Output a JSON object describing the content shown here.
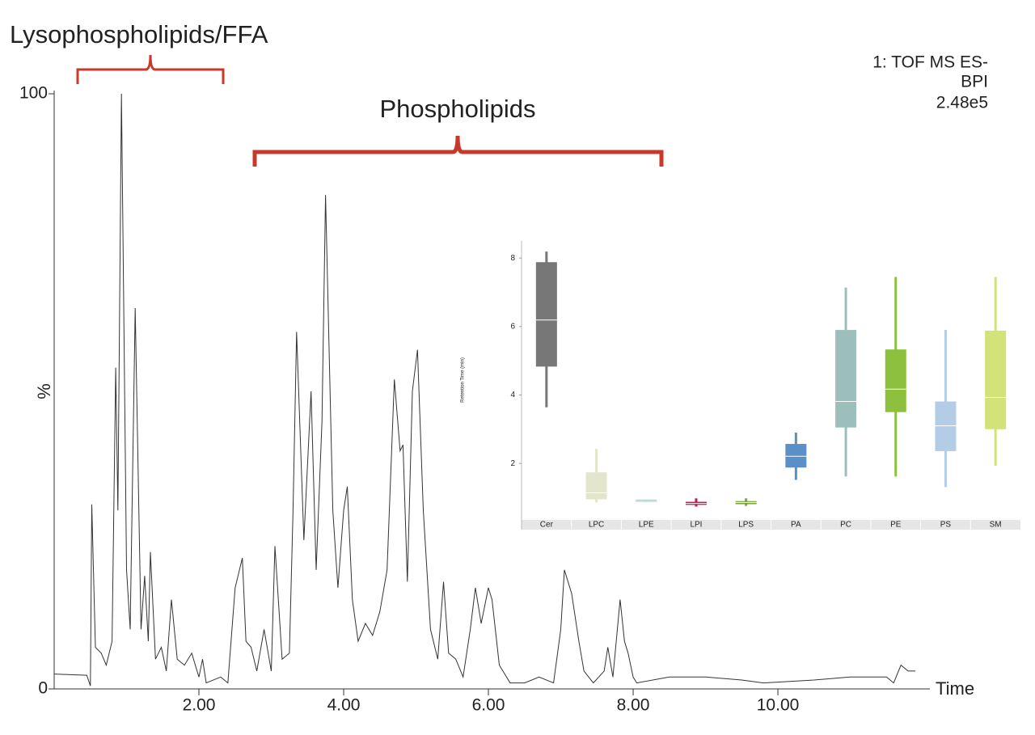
{
  "chart_data": [
    {
      "type": "line",
      "annotations": [
        "Lysophospholipids/FFA",
        "Phospholipids"
      ],
      "info": [
        "1: TOF MS ES-",
        "BPI",
        "2.48e5"
      ],
      "xlabel": "Time",
      "ylabel": "%",
      "color": "#333333",
      "x": [
        0.0,
        0.45,
        0.5,
        0.52,
        0.57,
        0.65,
        0.72,
        0.8,
        0.85,
        0.88,
        0.93,
        1.0,
        1.05,
        1.12,
        1.2,
        1.25,
        1.3,
        1.33,
        1.4,
        1.48,
        1.55,
        1.62,
        1.7,
        1.8,
        1.9,
        2.0,
        2.05,
        2.1,
        2.3,
        2.4,
        2.5,
        2.6,
        2.65,
        2.72,
        2.8,
        2.9,
        3.0,
        3.05,
        3.15,
        3.25,
        3.3,
        3.35,
        3.45,
        3.55,
        3.62,
        3.7,
        3.75,
        3.85,
        3.92,
        4.0,
        4.05,
        4.12,
        4.2,
        4.3,
        4.4,
        4.5,
        4.6,
        4.7,
        4.78,
        4.82,
        4.88,
        4.95,
        5.02,
        5.1,
        5.2,
        5.3,
        5.38,
        5.45,
        5.55,
        5.65,
        5.75,
        5.82,
        5.9,
        6.0,
        6.05,
        6.15,
        6.3,
        6.5,
        6.7,
        6.9,
        7.0,
        7.05,
        7.15,
        7.25,
        7.32,
        7.45,
        7.6,
        7.65,
        7.72,
        7.82,
        7.88,
        7.93,
        8.0,
        8.05,
        8.5,
        9.0,
        9.5,
        9.8,
        10.5,
        11.0,
        11.5,
        11.6,
        11.7,
        11.8,
        11.9
      ],
      "values": [
        2.5,
        2.3,
        0.5,
        31,
        7,
        6,
        4,
        8,
        54,
        30,
        100,
        20,
        10,
        64,
        10,
        19,
        8,
        23,
        5,
        7,
        3,
        15,
        5,
        4,
        6,
        2,
        5,
        1,
        2,
        1,
        17,
        22,
        8,
        7,
        3,
        10,
        3,
        24,
        5,
        6,
        30,
        60,
        25,
        50,
        20,
        45,
        83,
        30,
        17,
        30,
        34,
        15,
        8,
        11,
        9,
        13,
        20,
        52,
        40,
        41,
        18,
        50,
        57,
        30,
        10,
        5,
        18,
        6,
        5,
        2,
        10,
        17,
        11,
        17,
        15,
        4,
        1,
        1,
        2,
        1,
        10,
        20,
        16,
        8,
        3,
        1,
        3,
        7,
        2,
        15,
        8,
        6,
        2,
        1,
        2,
        2,
        1.5,
        1,
        1.5,
        2,
        2,
        1,
        4,
        3,
        3
      ],
      "xlim": [
        0,
        12.1
      ],
      "ylim": [
        0,
        100
      ],
      "xticks": [
        {
          "value": 2,
          "label": "2.00"
        },
        {
          "value": 4,
          "label": "4.00"
        },
        {
          "value": 6,
          "label": "6.00"
        },
        {
          "value": 8,
          "label": "8.00"
        },
        {
          "value": 10,
          "label": "10.00"
        }
      ],
      "yticks": [
        0,
        100
      ]
    },
    {
      "type": "box",
      "ylabel": "Retention Time (min)",
      "categories": [
        "Cer",
        "LPC",
        "LPE",
        "LPI",
        "LPS",
        "PA",
        "PC",
        "PE",
        "PS",
        "SM"
      ],
      "colors": [
        "#777777",
        "#e3e5cc",
        "#6a9e9a",
        "#c2185b",
        "#7aa33a",
        "#5b8fc7",
        "#9dbfbc",
        "#8dc03c",
        "#b3cde6",
        "#d4e27a"
      ],
      "min": [
        3.64,
        0.86,
        0.88,
        0.74,
        0.76,
        1.52,
        1.62,
        1.62,
        1.31,
        1.93
      ],
      "q1": [
        4.83,
        0.95,
        0.88,
        0.79,
        0.81,
        1.88,
        3.05,
        3.5,
        2.36,
        3.0
      ],
      "median": [
        6.19,
        1.14,
        0.9,
        0.83,
        0.86,
        2.21,
        3.81,
        4.17,
        3.1,
        3.93
      ],
      "q3": [
        7.88,
        1.74,
        0.93,
        0.88,
        0.9,
        2.57,
        5.9,
        5.33,
        3.81,
        5.88
      ],
      "max": [
        8.19,
        2.43,
        0.93,
        0.98,
        0.98,
        2.9,
        7.14,
        7.45,
        5.9,
        7.45
      ],
      "ylim": [
        0.35,
        8.5
      ],
      "yticks": [
        2,
        4,
        6,
        8
      ]
    }
  ]
}
